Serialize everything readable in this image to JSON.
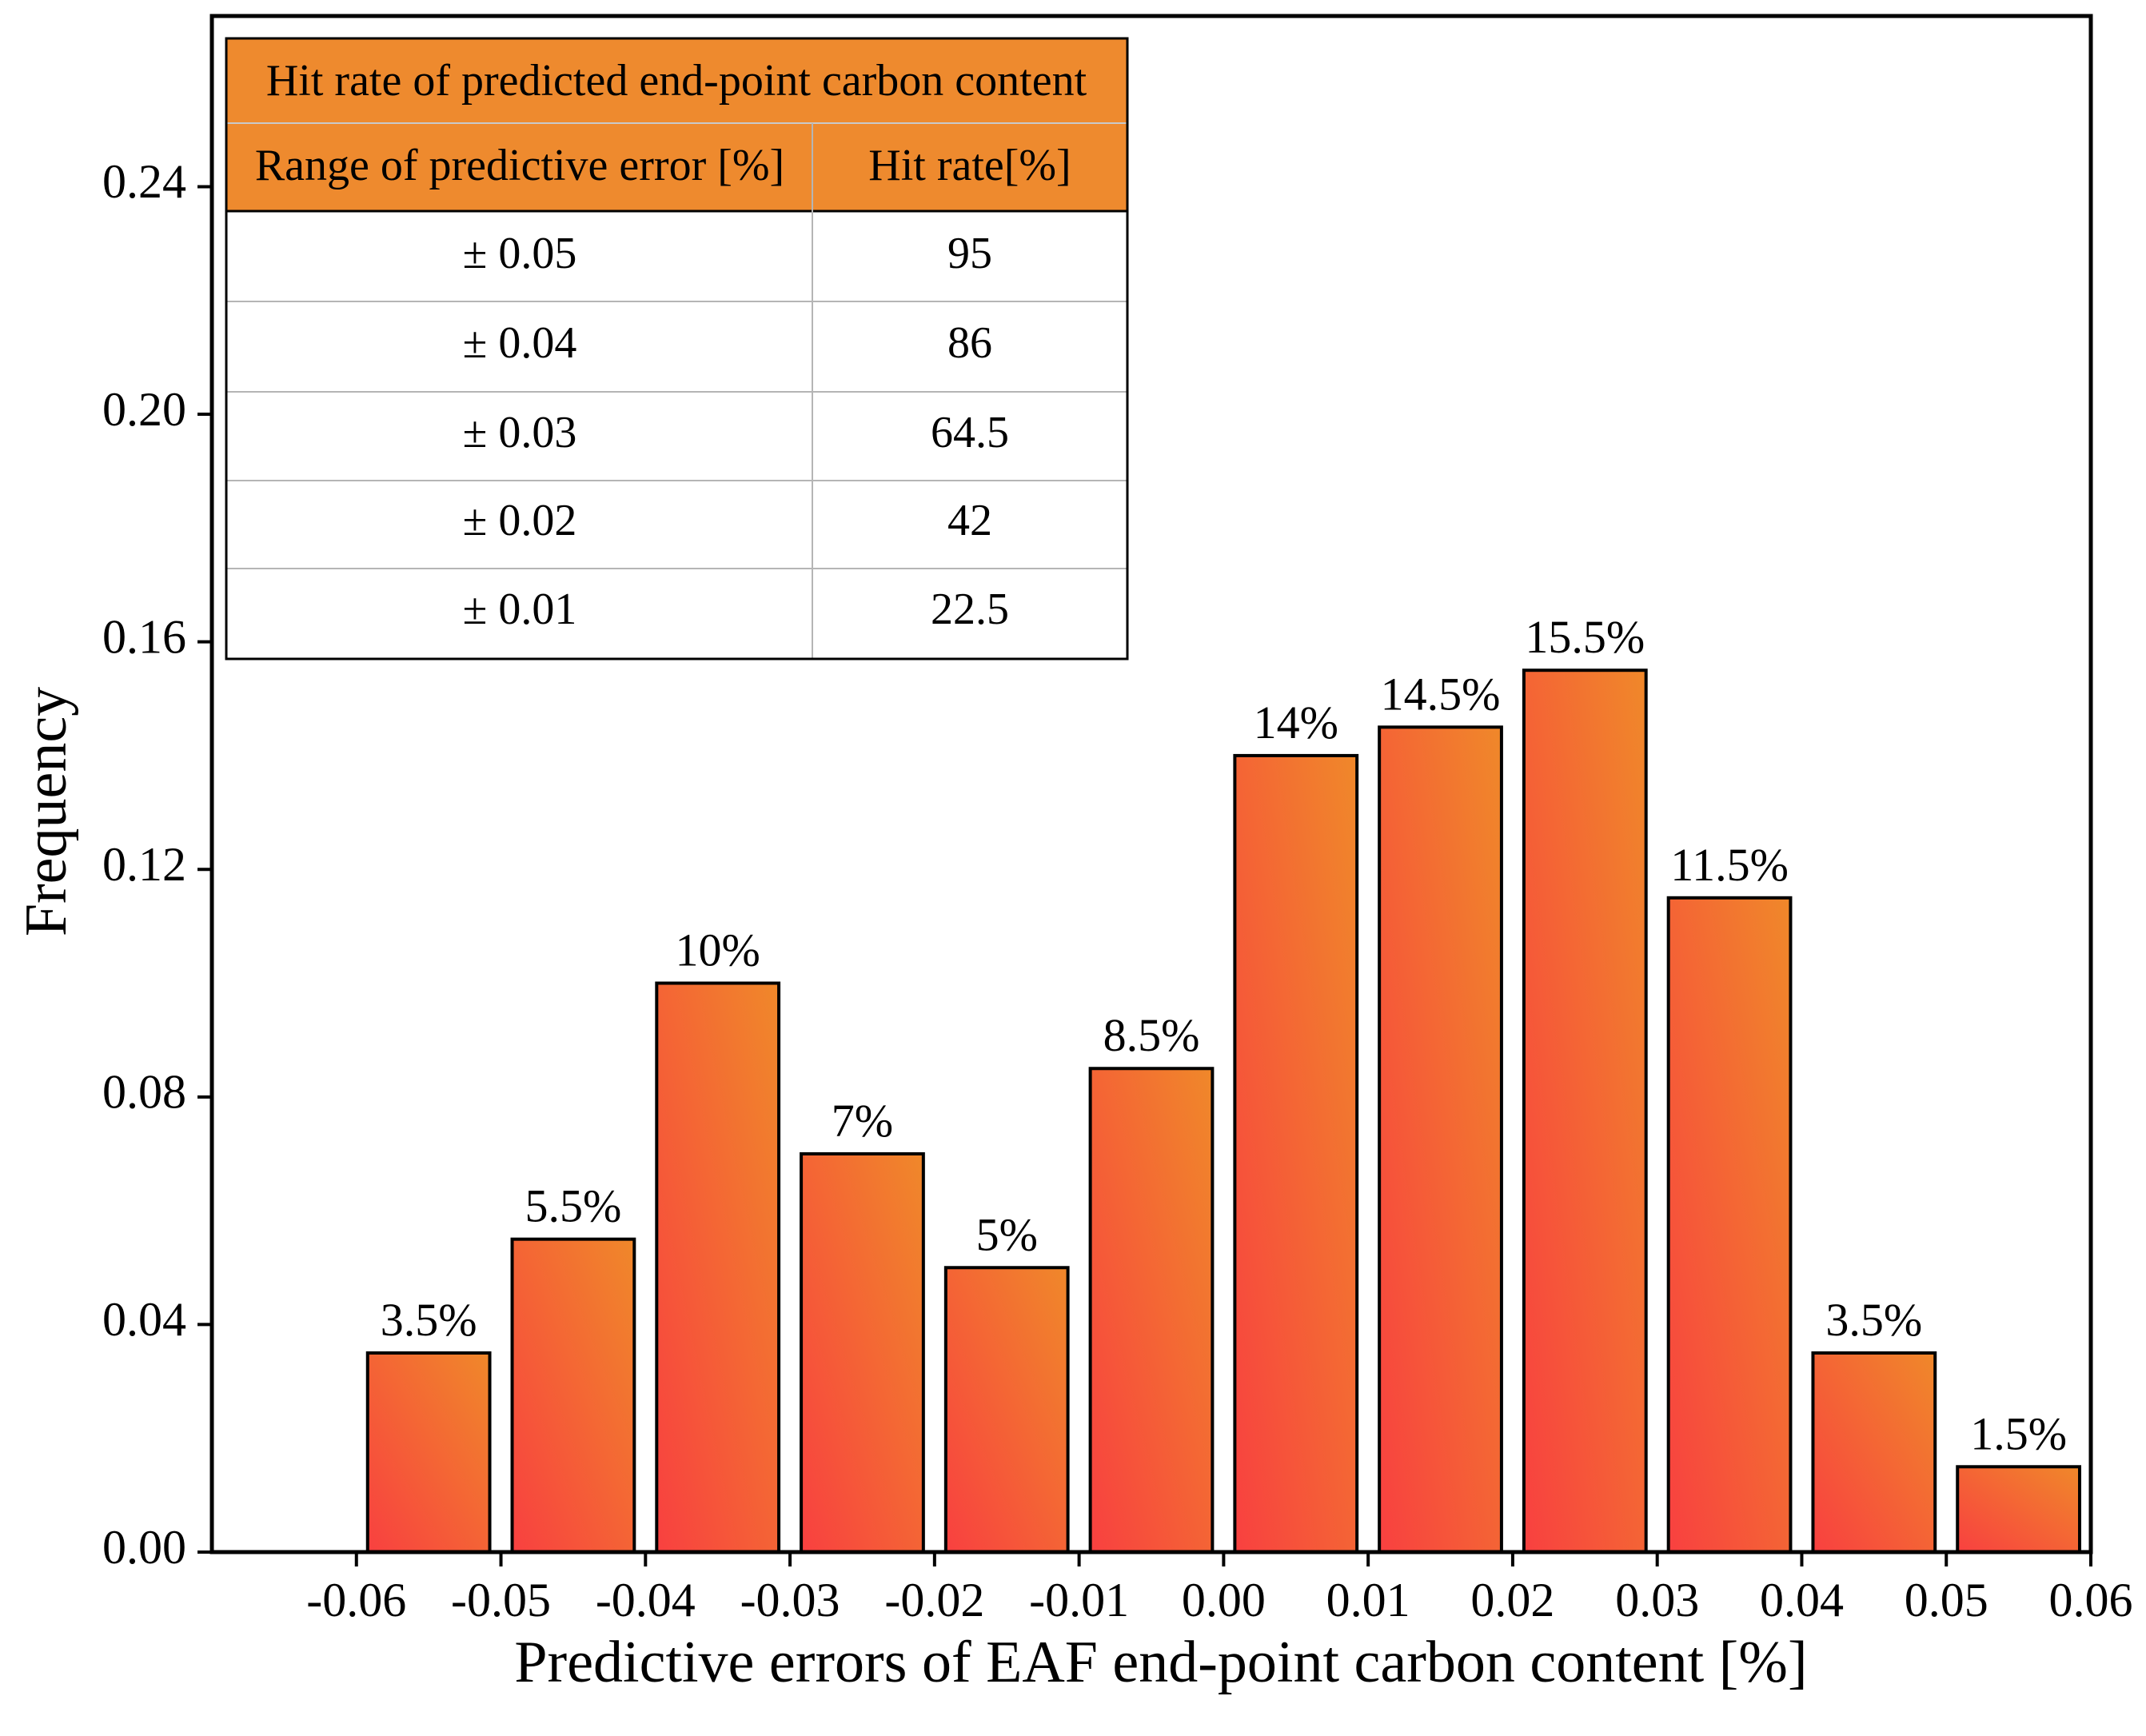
{
  "chart_data": {
    "type": "bar",
    "title": "",
    "xlabel": "Predictive errors of EAF end-point carbon content [%]",
    "ylabel": "Frequency",
    "xlim": [
      -0.07,
      0.06
    ],
    "ylim": [
      0.0,
      0.27
    ],
    "xticks": [
      "-0.06",
      "-0.05",
      "-0.04",
      "-0.03",
      "-0.02",
      "-0.01",
      "0.00",
      "0.01",
      "0.02",
      "0.03",
      "0.04",
      "0.05",
      "0.06"
    ],
    "yticks": [
      "0.00",
      "0.04",
      "0.08",
      "0.12",
      "0.16",
      "0.20",
      "0.24"
    ],
    "bins": [
      [
        -0.06,
        -0.05
      ],
      [
        -0.05,
        -0.04
      ],
      [
        -0.04,
        -0.03
      ],
      [
        -0.03,
        -0.02
      ],
      [
        -0.02,
        -0.01
      ],
      [
        -0.01,
        0.0
      ],
      [
        0.0,
        0.01
      ],
      [
        0.01,
        0.02
      ],
      [
        0.02,
        0.03
      ],
      [
        0.03,
        0.04
      ],
      [
        0.04,
        0.05
      ],
      [
        0.05,
        0.06
      ]
    ],
    "values": [
      0.035,
      0.055,
      0.1,
      0.07,
      0.05,
      0.085,
      0.14,
      0.145,
      0.155,
      0.115,
      0.035,
      0.015
    ],
    "labels": [
      "3.5%",
      "5.5%",
      "10%",
      "7%",
      "5%",
      "8.5%",
      "14%",
      "14.5%",
      "15.5%",
      "11.5%",
      "3.5%",
      "1.5%"
    ],
    "gradient": [
      "#f84040",
      "#f0882a"
    ],
    "bar_edge_color": "#000000"
  },
  "table": {
    "title": "Hit rate of predicted end-point carbon content",
    "headers": [
      "Range of predictive error [%]",
      "Hit rate[%]"
    ],
    "rows": [
      [
        "± 0.05",
        "95"
      ],
      [
        "± 0.04",
        "86"
      ],
      [
        "± 0.03",
        "64.5"
      ],
      [
        "± 0.02",
        "42"
      ],
      [
        "± 0.01",
        "22.5"
      ]
    ],
    "header_color": "#ee8a2e"
  }
}
